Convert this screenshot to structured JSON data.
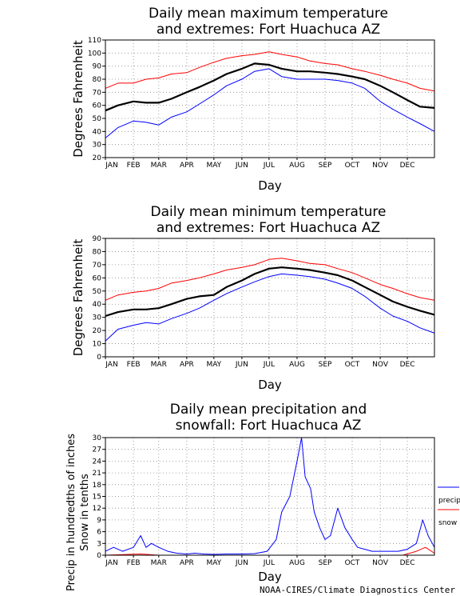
{
  "footer": "NOAA-CIRES/Climate Diagnostics Center",
  "months": [
    "JAN",
    "FEB",
    "MAR",
    "APR",
    "MAY",
    "JUN",
    "JUL",
    "AUG",
    "SEP",
    "OCT",
    "NOV",
    "DEC"
  ],
  "chart_data": [
    {
      "type": "line",
      "title_line1": "Daily mean maximum temperature",
      "title_line2": "and extremes: Fort Huachuca AZ",
      "xlabel": "Day",
      "ylabel": "Degrees Fahrenheit",
      "ylim": [
        20,
        110
      ],
      "yticks": [
        20,
        30,
        40,
        50,
        60,
        70,
        80,
        90,
        100,
        110
      ],
      "grid": true,
      "series": [
        {
          "role": "max-extreme",
          "color": "#ff0000",
          "x": [
            1,
            15,
            32,
            46,
            60,
            74,
            91,
            105,
            121,
            135,
            152,
            166,
            182,
            196,
            213,
            227,
            244,
            258,
            274,
            288,
            305,
            319,
            335,
            349,
            365
          ],
          "values": [
            73,
            77,
            77,
            80,
            81,
            84,
            85,
            89,
            93,
            96,
            98,
            99,
            101,
            99,
            97,
            94,
            92,
            91,
            88,
            86,
            83,
            80,
            77,
            73,
            71
          ]
        },
        {
          "role": "mean",
          "color": "#000000",
          "x": [
            1,
            15,
            32,
            46,
            60,
            74,
            91,
            105,
            121,
            135,
            152,
            166,
            182,
            196,
            213,
            227,
            244,
            258,
            274,
            288,
            305,
            319,
            335,
            349,
            365
          ],
          "values": [
            56,
            60,
            63,
            62,
            62,
            65,
            70,
            74,
            79,
            84,
            88,
            92,
            91,
            88,
            86,
            86,
            85,
            84,
            82,
            80,
            75,
            70,
            64,
            59,
            58
          ]
        },
        {
          "role": "min-extreme",
          "color": "#0000ff",
          "x": [
            1,
            15,
            32,
            46,
            60,
            74,
            91,
            105,
            121,
            135,
            152,
            166,
            182,
            196,
            213,
            227,
            244,
            258,
            274,
            288,
            305,
            319,
            335,
            349,
            365
          ],
          "values": [
            35,
            43,
            48,
            47,
            45,
            51,
            55,
            61,
            68,
            75,
            80,
            86,
            88,
            82,
            80,
            80,
            80,
            79,
            77,
            73,
            63,
            57,
            51,
            46,
            40
          ]
        }
      ]
    },
    {
      "type": "line",
      "title_line1": "Daily mean minimum temperature",
      "title_line2": "and extremes: Fort Huachuca AZ",
      "xlabel": "Day",
      "ylabel": "Degrees Fahrenheit",
      "ylim": [
        0,
        90
      ],
      "yticks": [
        0,
        10,
        20,
        30,
        40,
        50,
        60,
        70,
        80,
        90
      ],
      "grid": true,
      "series": [
        {
          "role": "max-extreme",
          "color": "#ff0000",
          "x": [
            1,
            15,
            32,
            46,
            60,
            74,
            91,
            105,
            121,
            135,
            152,
            166,
            182,
            196,
            213,
            227,
            244,
            258,
            274,
            288,
            305,
            319,
            335,
            349,
            365
          ],
          "values": [
            43,
            47,
            49,
            50,
            52,
            56,
            58,
            60,
            63,
            66,
            68,
            70,
            74,
            75,
            73,
            71,
            70,
            67,
            64,
            60,
            55,
            52,
            48,
            45,
            43
          ]
        },
        {
          "role": "mean",
          "color": "#000000",
          "x": [
            1,
            15,
            32,
            46,
            60,
            74,
            91,
            105,
            121,
            135,
            152,
            166,
            182,
            196,
            213,
            227,
            244,
            258,
            274,
            288,
            305,
            319,
            335,
            349,
            365
          ],
          "values": [
            31,
            34,
            36,
            36,
            37,
            40,
            44,
            46,
            47,
            53,
            58,
            63,
            67,
            68,
            67,
            66,
            64,
            62,
            58,
            53,
            47,
            42,
            38,
            35,
            32
          ]
        },
        {
          "role": "min-extreme",
          "color": "#0000ff",
          "x": [
            1,
            15,
            32,
            46,
            60,
            74,
            91,
            105,
            121,
            135,
            152,
            166,
            182,
            196,
            213,
            227,
            244,
            258,
            274,
            288,
            305,
            319,
            335,
            349,
            365
          ],
          "values": [
            12,
            21,
            24,
            26,
            25,
            29,
            33,
            37,
            43,
            48,
            53,
            57,
            61,
            63,
            62,
            61,
            59,
            56,
            52,
            46,
            37,
            31,
            27,
            22,
            18
          ]
        }
      ]
    },
    {
      "type": "line",
      "title_line1": "Daily mean precipitation and",
      "title_line2": "snowfall: Fort Huachuca AZ",
      "xlabel": "Day",
      "ylabel": "Precip in hundredths of inches",
      "ylabel2": "Snow in tenths",
      "ylim": [
        0,
        30
      ],
      "yticks": [
        0,
        3,
        6,
        9,
        12,
        15,
        18,
        21,
        24,
        27,
        30
      ],
      "grid": true,
      "legend": {
        "placement": "right",
        "items": [
          {
            "label": "precip",
            "color": "#0000ff"
          },
          {
            "label": "snow",
            "color": "#ff0000"
          }
        ]
      },
      "series": [
        {
          "role": "precip",
          "color": "#0000ff",
          "x": [
            1,
            10,
            20,
            32,
            40,
            46,
            52,
            60,
            70,
            80,
            91,
            100,
            110,
            121,
            135,
            152,
            166,
            180,
            190,
            196,
            205,
            213,
            218,
            222,
            228,
            232,
            238,
            244,
            250,
            258,
            266,
            274,
            280,
            288,
            296,
            305,
            315,
            325,
            335,
            345,
            352,
            358,
            365
          ],
          "values": [
            1,
            2,
            1,
            2,
            5,
            2,
            3,
            2,
            1,
            0.5,
            0.3,
            0.5,
            0.3,
            0.2,
            0.3,
            0.3,
            0.4,
            1,
            4,
            11,
            15,
            24,
            30,
            20,
            17,
            11,
            7,
            4,
            5,
            12,
            7,
            4,
            2,
            1.5,
            1,
            1,
            1,
            1,
            1.5,
            3,
            9,
            5,
            2
          ]
        },
        {
          "role": "snow",
          "color": "#ff0000",
          "x": [
            1,
            40,
            60,
            90,
            120,
            300,
            330,
            345,
            355,
            365
          ],
          "values": [
            0,
            0.3,
            0,
            0,
            0,
            0,
            0,
            1,
            2,
            0.5
          ]
        }
      ]
    }
  ]
}
